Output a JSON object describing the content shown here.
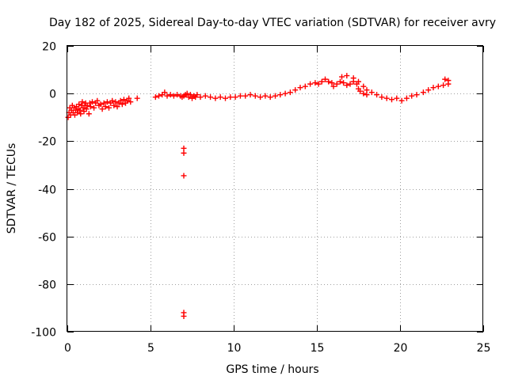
{
  "chart_data": {
    "type": "scatter",
    "title": "Day 182 of 2025, Sidereal Day-to-day VTEC variation (SDTVAR) for receiver avry",
    "xlabel": "GPS time / hours",
    "ylabel": "SDTVAR / TECUs",
    "xlim": [
      0,
      25
    ],
    "ylim": [
      -100,
      20
    ],
    "x_ticks": [
      0,
      5,
      10,
      15,
      20,
      25
    ],
    "y_ticks": [
      -100,
      -80,
      -60,
      -40,
      -20,
      0,
      20
    ],
    "x_tick_labels": [
      "0",
      "5",
      "10",
      "15",
      "20",
      "25"
    ],
    "y_tick_labels": [
      "-100",
      "-80",
      "-60",
      "-40",
      "-20",
      "0",
      "20"
    ],
    "grid": true,
    "marker": "+",
    "color": "#ff0000",
    "series": [
      {
        "name": "SDTVAR",
        "points": [
          [
            0.05,
            -10
          ],
          [
            0.1,
            -8
          ],
          [
            0.15,
            -6
          ],
          [
            0.2,
            -9
          ],
          [
            0.25,
            -7
          ],
          [
            0.3,
            -5
          ],
          [
            0.35,
            -8
          ],
          [
            0.4,
            -6
          ],
          [
            0.45,
            -9
          ],
          [
            0.5,
            -7
          ],
          [
            0.55,
            -5.5
          ],
          [
            0.6,
            -8
          ],
          [
            0.65,
            -6.5
          ],
          [
            0.7,
            -4.5
          ],
          [
            0.75,
            -7
          ],
          [
            0.8,
            -8.5
          ],
          [
            0.85,
            -5
          ],
          [
            0.9,
            -3.5
          ],
          [
            0.95,
            -6
          ],
          [
            1.0,
            -7.5
          ],
          [
            1.05,
            -5
          ],
          [
            1.1,
            -4
          ],
          [
            1.15,
            -6.5
          ],
          [
            1.2,
            -5
          ],
          [
            1.3,
            -8.5
          ],
          [
            1.35,
            -4
          ],
          [
            1.4,
            -5.5
          ],
          [
            1.5,
            -3.5
          ],
          [
            1.6,
            -6
          ],
          [
            1.7,
            -4
          ],
          [
            1.8,
            -3
          ],
          [
            1.9,
            -5
          ],
          [
            2.0,
            -4.5
          ],
          [
            2.1,
            -6.5
          ],
          [
            2.2,
            -4
          ],
          [
            2.3,
            -5.5
          ],
          [
            2.4,
            -3.5
          ],
          [
            2.5,
            -6
          ],
          [
            2.6,
            -4
          ],
          [
            2.7,
            -3
          ],
          [
            2.8,
            -5
          ],
          [
            2.9,
            -3.5
          ],
          [
            3.0,
            -5.5
          ],
          [
            3.1,
            -4
          ],
          [
            3.2,
            -3
          ],
          [
            3.3,
            -4.5
          ],
          [
            3.4,
            -2.5
          ],
          [
            3.5,
            -4
          ],
          [
            3.6,
            -3
          ],
          [
            3.7,
            -2
          ],
          [
            3.8,
            -3.5
          ],
          [
            4.2,
            -2
          ],
          [
            5.3,
            -1.5
          ],
          [
            5.5,
            -1
          ],
          [
            5.7,
            -0.5
          ],
          [
            5.85,
            0.5
          ],
          [
            6.0,
            -1
          ],
          [
            6.2,
            -0.5
          ],
          [
            6.4,
            -1
          ],
          [
            6.6,
            -0.5
          ],
          [
            6.8,
            -1
          ],
          [
            6.9,
            -1.5
          ],
          [
            7.0,
            -1
          ],
          [
            7.1,
            -0.5
          ],
          [
            7.2,
            0
          ],
          [
            7.3,
            -1.5
          ],
          [
            7.4,
            -0.5
          ],
          [
            7.5,
            -2
          ],
          [
            7.6,
            -1
          ],
          [
            7.7,
            -1.5
          ],
          [
            7.8,
            -0.5
          ],
          [
            8.0,
            -1.5
          ],
          [
            8.3,
            -1
          ],
          [
            8.6,
            -1.5
          ],
          [
            8.9,
            -2
          ],
          [
            9.2,
            -1.5
          ],
          [
            9.5,
            -2
          ],
          [
            9.8,
            -1.5
          ],
          [
            10.1,
            -1.5
          ],
          [
            10.4,
            -1
          ],
          [
            10.7,
            -1
          ],
          [
            11.0,
            -0.5
          ],
          [
            11.3,
            -1
          ],
          [
            11.6,
            -1.5
          ],
          [
            11.9,
            -1
          ],
          [
            12.2,
            -1.5
          ],
          [
            12.5,
            -1
          ],
          [
            12.8,
            -0.5
          ],
          [
            13.1,
            0
          ],
          [
            13.4,
            0.5
          ],
          [
            13.7,
            1.5
          ],
          [
            14.0,
            2.5
          ],
          [
            14.3,
            3
          ],
          [
            14.6,
            4
          ],
          [
            14.9,
            4.5
          ],
          [
            15.1,
            4
          ],
          [
            15.3,
            5
          ],
          [
            15.5,
            6
          ],
          [
            15.7,
            5
          ],
          [
            15.9,
            4.5
          ],
          [
            16.0,
            3
          ],
          [
            16.2,
            4
          ],
          [
            16.4,
            5
          ],
          [
            16.6,
            4.5
          ],
          [
            16.8,
            3.5
          ],
          [
            17.0,
            4
          ],
          [
            17.2,
            5
          ],
          [
            17.4,
            4
          ],
          [
            17.5,
            2
          ],
          [
            17.6,
            1
          ],
          [
            17.8,
            0
          ],
          [
            18.0,
            -0.5
          ],
          [
            16.5,
            7
          ],
          [
            16.8,
            7.5
          ],
          [
            17.2,
            6.5
          ],
          [
            17.5,
            5
          ],
          [
            17.8,
            3
          ],
          [
            18.0,
            1.5
          ],
          [
            18.3,
            0.5
          ],
          [
            18.6,
            -0.5
          ],
          [
            18.9,
            -1.5
          ],
          [
            19.2,
            -2
          ],
          [
            19.5,
            -2.5
          ],
          [
            19.8,
            -2
          ],
          [
            20.1,
            -3
          ],
          [
            20.4,
            -2
          ],
          [
            20.7,
            -1
          ],
          [
            21.0,
            -0.5
          ],
          [
            21.4,
            0.5
          ],
          [
            21.7,
            1.5
          ],
          [
            22.0,
            2.5
          ],
          [
            22.3,
            3
          ],
          [
            22.6,
            3.5
          ],
          [
            22.9,
            4
          ],
          [
            22.7,
            6
          ],
          [
            22.9,
            5.5
          ],
          [
            7.0,
            -23
          ],
          [
            7.0,
            -25
          ],
          [
            7.0,
            -34.5
          ],
          [
            7.0,
            -92
          ],
          [
            7.0,
            -93.5
          ]
        ]
      }
    ]
  }
}
